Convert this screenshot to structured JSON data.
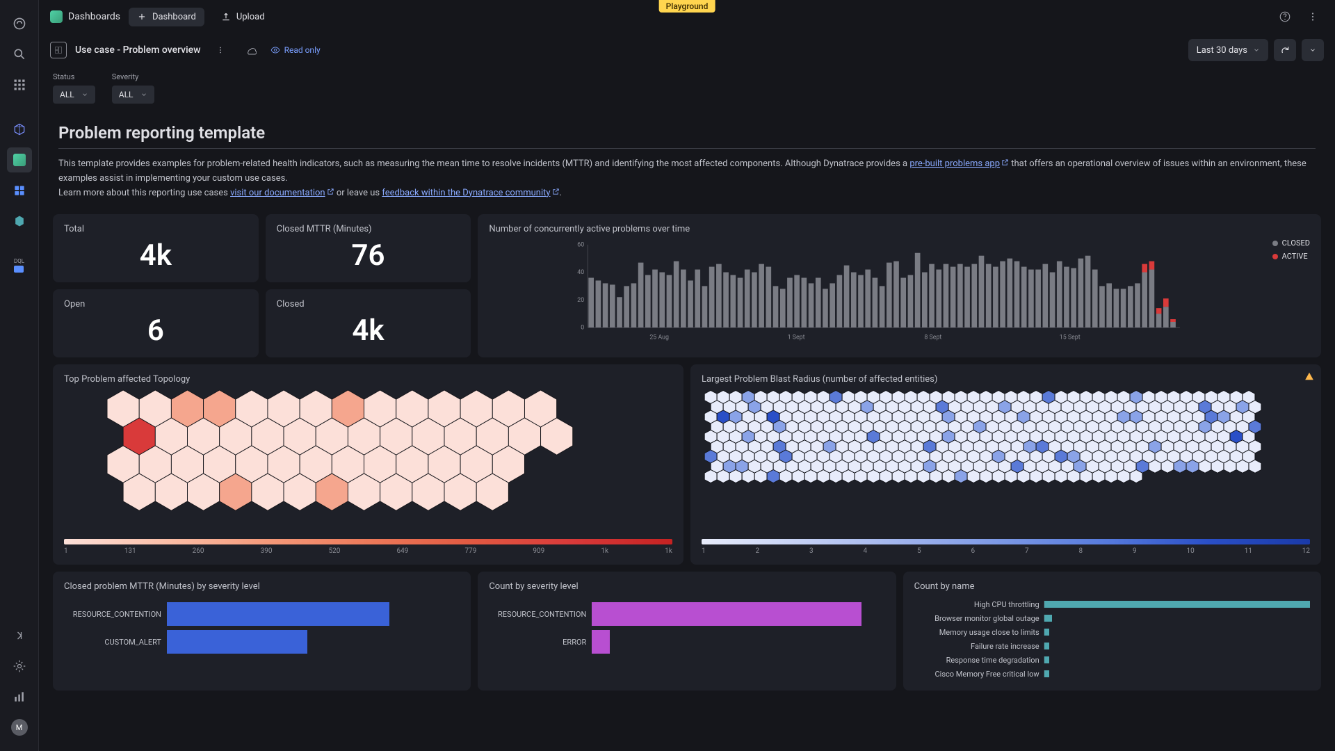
{
  "topbar": {
    "breadcrumb": "Dashboards",
    "new_dashboard": "Dashboard",
    "upload": "Upload",
    "playground_badge": "Playground"
  },
  "title": {
    "dashboard_name": "Use case - Problem overview",
    "read_only": "Read only",
    "time_range": "Last 30 days"
  },
  "filters": {
    "status_label": "Status",
    "status_value": "ALL",
    "severity_label": "Severity",
    "severity_value": "ALL"
  },
  "hero": {
    "heading": "Problem reporting template",
    "body1": "This template provides examples for problem-related health indicators, such as measuring the mean time to resolve incidents (MTTR) and identifying the most affected components. Although Dynatrace provides a ",
    "link1": "pre-built problems app",
    "body2": " that offers an operational overview of issues within an environment, these examples assist in implementing your custom use cases.",
    "body3": "Learn more about this reporting use cases ",
    "link2": "visit our documentation",
    "body4": " or leave us ",
    "link3": "feedback within the Dynatrace community",
    "body5": "."
  },
  "stats": {
    "total_label": "Total",
    "total_value": "4k",
    "mttr_label": "Closed MTTR (Minutes)",
    "mttr_value": "76",
    "open_label": "Open",
    "open_value": "6",
    "closed_label": "Closed",
    "closed_value": "4k"
  },
  "concurrent_chart": {
    "title": "Number of concurrently active problems over time",
    "type": "bar",
    "ylim": [
      0,
      60
    ],
    "yticks": [
      0,
      20,
      40,
      60
    ],
    "xticks": [
      "25 Aug",
      "1 Sept",
      "8 Sept",
      "15 Sept"
    ],
    "legend": [
      {
        "label": "CLOSED",
        "color": "#7a7c84"
      },
      {
        "label": "ACTIVE",
        "color": "#d93a3a"
      }
    ],
    "bar_color_closed": "#7a7c84",
    "bar_color_active": "#d93a3a",
    "background_color": "#1e2028",
    "grid_color": "#3a3c44",
    "values": [
      36,
      34,
      32,
      31,
      22,
      30,
      32,
      47,
      38,
      42,
      40,
      38,
      48,
      42,
      34,
      42,
      30,
      44,
      46,
      40,
      38,
      36,
      42,
      40,
      46,
      44,
      30,
      28,
      36,
      38,
      36,
      32,
      36,
      28,
      32,
      38,
      45,
      40,
      38,
      42,
      36,
      30,
      47,
      48,
      36,
      38,
      54,
      40,
      46,
      42,
      46,
      44,
      46,
      44,
      46,
      52,
      46,
      44,
      48,
      50,
      48,
      44,
      42,
      42,
      46,
      40,
      48,
      44,
      43,
      50,
      52,
      42,
      30,
      32,
      28,
      28,
      30,
      32,
      40,
      42,
      10,
      15,
      4
    ],
    "active_values": [
      0,
      0,
      0,
      0,
      0,
      0,
      0,
      0,
      0,
      0,
      0,
      0,
      0,
      0,
      0,
      0,
      0,
      0,
      0,
      0,
      0,
      0,
      0,
      0,
      0,
      0,
      0,
      0,
      0,
      0,
      0,
      0,
      0,
      0,
      0,
      0,
      0,
      0,
      0,
      0,
      0,
      0,
      0,
      0,
      0,
      0,
      0,
      0,
      0,
      0,
      0,
      0,
      0,
      0,
      0,
      0,
      0,
      0,
      0,
      0,
      0,
      0,
      0,
      0,
      0,
      0,
      0,
      0,
      0,
      0,
      0,
      0,
      0,
      0,
      0,
      0,
      0,
      0,
      6,
      6,
      4,
      6,
      2
    ]
  },
  "topology": {
    "title": "Top Problem affected Topology",
    "hex_rows": 4,
    "hex_cols": 14,
    "color_light": "#fce0d9",
    "color_mid": "#f5a68e",
    "color_dark": "#d93a3a",
    "scale_ticks": [
      "1",
      "131",
      "260",
      "390",
      "520",
      "649",
      "779",
      "909",
      "1k",
      "1k"
    ],
    "scale_gradient": [
      "#fce0d9",
      "#fbbfa8",
      "#f59a7a",
      "#ed7a5a",
      "#e25a42",
      "#d93a3a",
      "#c52222"
    ],
    "intensities": [
      [
        1,
        1,
        2,
        2,
        1,
        1,
        1,
        2,
        1,
        1,
        1,
        1,
        1,
        1
      ],
      [
        4,
        1,
        1,
        1,
        1,
        1,
        1,
        1,
        1,
        1,
        1,
        1,
        1,
        1
      ],
      [
        1,
        1,
        1,
        1,
        1,
        1,
        1,
        1,
        1,
        1,
        1,
        1,
        1,
        0
      ],
      [
        1,
        1,
        1,
        2,
        1,
        1,
        2,
        1,
        1,
        1,
        1,
        1,
        0,
        0
      ]
    ]
  },
  "blast": {
    "title": "Largest Problem Blast Radius (number of affected entities)",
    "hex_rows": 9,
    "hex_cols": 44,
    "color_light": "#e8ecfb",
    "color_mid": "#8aa3e8",
    "color_dark": "#2a4fc7",
    "scale_ticks": [
      "1",
      "2",
      "3",
      "4",
      "5",
      "6",
      "7",
      "8",
      "9",
      "10",
      "11",
      "12"
    ],
    "scale_gradient": [
      "#e8ecfb",
      "#c4d0f4",
      "#9fb3ed",
      "#7a97e5",
      "#567add",
      "#2a4fc7",
      "#1a3aa8"
    ]
  },
  "mttr_chart": {
    "title": "Closed problem MTTR (Minutes) by severity level",
    "max": 100,
    "bars": [
      {
        "label": "RESOURCE_CONTENTION",
        "value": 76,
        "color": "#3a62d8"
      },
      {
        "label": "CUSTOM_ALERT",
        "value": 48,
        "color": "#3a62d8"
      }
    ]
  },
  "count_severity": {
    "title": "Count by severity level",
    "max": 100,
    "bars": [
      {
        "label": "RESOURCE_CONTENTION",
        "value": 92,
        "color": "#b84fd1"
      },
      {
        "label": "ERROR",
        "value": 6,
        "color": "#b84fd1"
      }
    ]
  },
  "count_name": {
    "title": "Count by name",
    "max": 100,
    "color": "#4fa8b0",
    "items": [
      {
        "label": "High CPU throttling",
        "value": 100
      },
      {
        "label": "Browser monitor global outage",
        "value": 3
      },
      {
        "label": "Memory usage close to limits",
        "value": 2
      },
      {
        "label": "Failure rate increase",
        "value": 2
      },
      {
        "label": "Response time degradation",
        "value": 2
      },
      {
        "label": "Cisco Memory Free critical low",
        "value": 2
      }
    ]
  },
  "colors": {
    "bg": "#15161b",
    "card": "#1e2028",
    "text": "#e0e0e5",
    "muted": "#8a8c94",
    "link": "#8aaaff",
    "badge": "#ffd54f"
  }
}
